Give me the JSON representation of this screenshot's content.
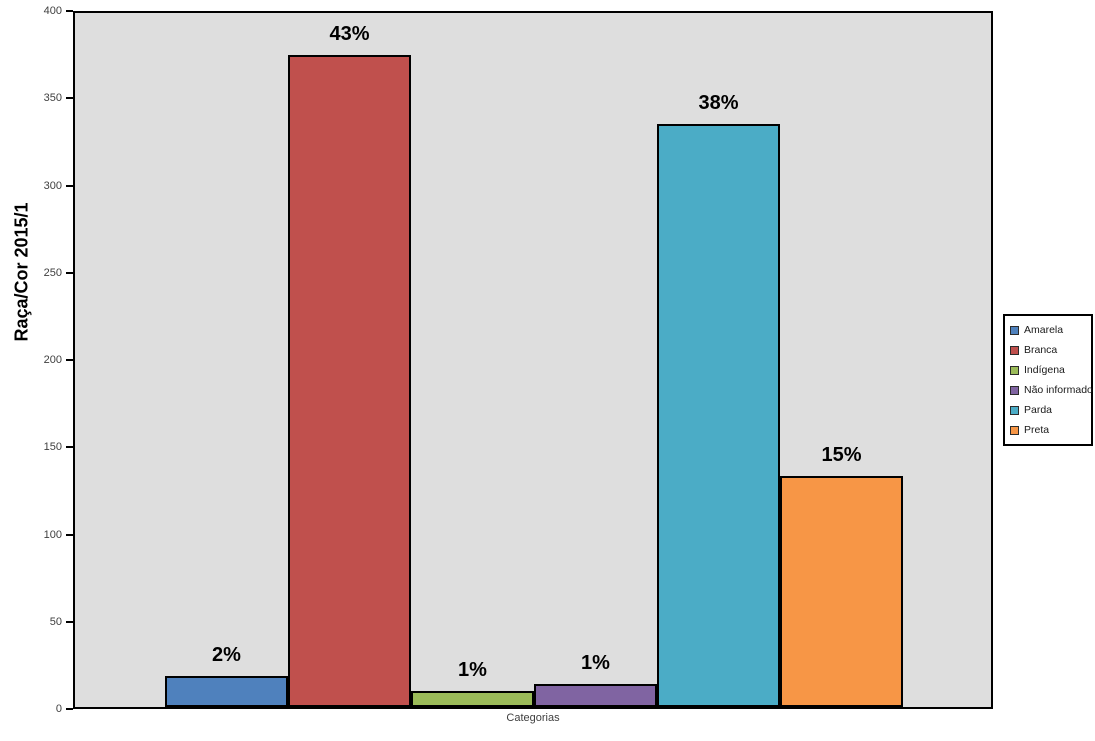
{
  "chart_data": {
    "type": "bar",
    "title": "",
    "ylabel": "Raça/Cor 2015/1",
    "xlabel": "Categorias",
    "ylim": [
      0,
      400
    ],
    "yticks": [
      0,
      50,
      100,
      150,
      200,
      250,
      300,
      350,
      400
    ],
    "grid": false,
    "legend_position": "right",
    "plot_background": "#dedede",
    "bar_border_color": "#000000",
    "categories": [
      "Amarela",
      "Branca",
      "Indígena",
      "Não informado",
      "Parda",
      "Preta"
    ],
    "values": [
      18,
      376,
      9,
      13,
      336,
      133
    ],
    "labels": [
      "2%",
      "43%",
      "1%",
      "1%",
      "38%",
      "15%"
    ],
    "colors": [
      "#4F81BD",
      "#C0504D",
      "#9BBB59",
      "#8064A2",
      "#4BACC6",
      "#F79646"
    ]
  }
}
